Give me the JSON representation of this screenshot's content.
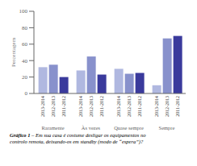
{
  "chart_data": {
    "type": "bar",
    "categories": [
      "Raramente",
      "Às vezes",
      "Quase sempre",
      "Sempre"
    ],
    "series": [
      {
        "name": "2013-2014",
        "color": "#b0b8e0",
        "values": [
          32,
          28,
          30,
          10
        ]
      },
      {
        "name": "2012-2013",
        "color": "#8891cc",
        "values": [
          35,
          45,
          24,
          67
        ]
      },
      {
        "name": "2011-2012",
        "color": "#3a3a9c",
        "values": [
          20,
          23,
          25,
          70
        ]
      }
    ],
    "ylabel": "Percentagem",
    "ylim": [
      0,
      100
    ],
    "yticks": [
      0,
      20,
      40,
      60,
      80,
      100
    ],
    "grid": false,
    "annotations": [
      "Gráfico 1",
      " – Em sua casa é costume desligar os equipamentos no\ncontrolo remota, deixando-os em standby (modo de “espera”)?"
    ]
  }
}
